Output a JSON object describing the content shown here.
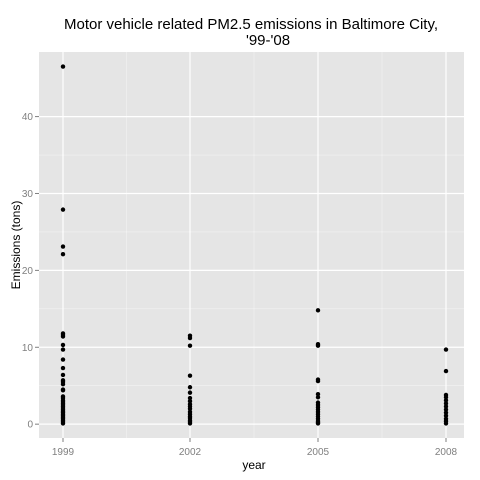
{
  "chart_data": {
    "type": "scatter",
    "title_lines": [
      "Motor vehicle related PM2.5 emissions in Baltimore City,",
      "'99-'08"
    ],
    "xlabel": "year",
    "ylabel": "Emissions (tons)",
    "x_ticks": [
      "1999",
      "2002",
      "2005",
      "2008"
    ],
    "y_ticks": [
      0,
      10,
      20,
      30,
      40
    ],
    "ylim": [
      -1.8,
      48.4
    ],
    "grid": true,
    "panel_background": "#e5e5e5",
    "grid_color": "#ffffff",
    "point_color": "#000000",
    "series": [
      {
        "x": "1999",
        "values": [
          46.5,
          27.9,
          23.1,
          22.1,
          11.8,
          11.6,
          11.4,
          10.3,
          9.7,
          8.4,
          7.3,
          6.4,
          5.7,
          5.5,
          5.2,
          4.5,
          4.4,
          3.6,
          3.4,
          3.1,
          2.9,
          2.7,
          2.5,
          2.3,
          2.1,
          1.9,
          1.7,
          1.5,
          1.3,
          1.1,
          0.9,
          0.7,
          0.5,
          0.3,
          0.1
        ]
      },
      {
        "x": "2002",
        "values": [
          11.5,
          11.2,
          10.2,
          6.3,
          4.8,
          4.1,
          3.4,
          3.0,
          2.6,
          2.3,
          2.0,
          1.6,
          1.3,
          1.0,
          0.8,
          0.5,
          0.3,
          0.1
        ]
      },
      {
        "x": "2005",
        "values": [
          14.8,
          10.4,
          10.2,
          5.8,
          5.6,
          3.9,
          3.5,
          2.8,
          2.5,
          2.2,
          1.9,
          1.6,
          1.3,
          1.0,
          0.7,
          0.4,
          0.2,
          0.1
        ]
      },
      {
        "x": "2008",
        "values": [
          9.7,
          6.9,
          3.8,
          3.5,
          3.1,
          2.7,
          2.3,
          1.9,
          1.5,
          1.1,
          0.7,
          0.4,
          0.1
        ]
      }
    ]
  }
}
